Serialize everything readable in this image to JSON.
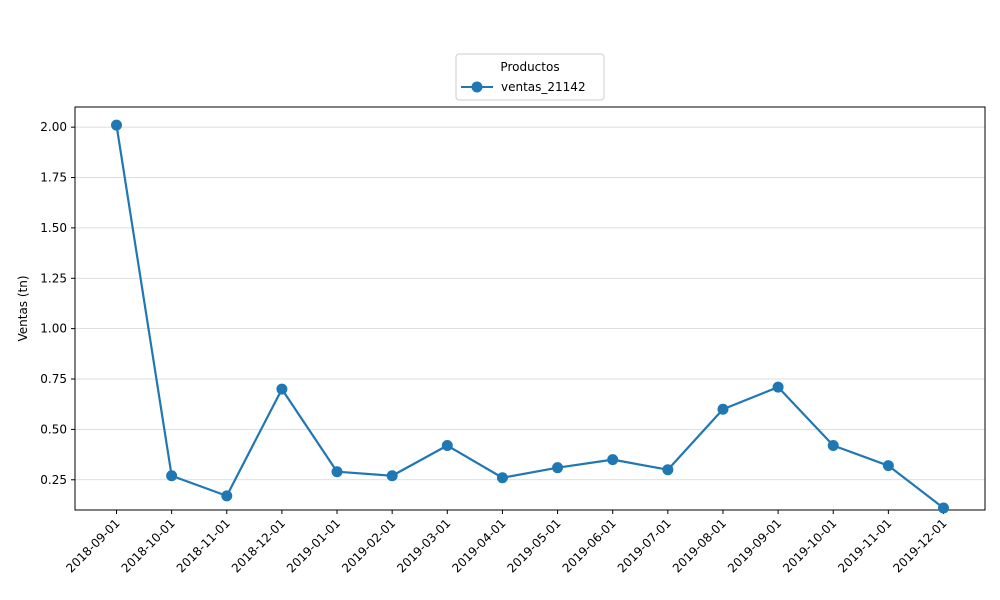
{
  "chart_data": {
    "type": "line",
    "ylabel": "Ventas (tn)",
    "xlabel": "",
    "legend_title": "Productos",
    "legend_position": "top-center",
    "grid": "y",
    "ylim": [
      0.1,
      2.1
    ],
    "yticks": [
      "0.25",
      "0.50",
      "0.75",
      "1.00",
      "1.25",
      "1.50",
      "1.75",
      "2.00"
    ],
    "x": [
      "2018-09-01",
      "2018-10-01",
      "2018-11-01",
      "2018-12-01",
      "2019-01-01",
      "2019-02-01",
      "2019-03-01",
      "2019-04-01",
      "2019-05-01",
      "2019-06-01",
      "2019-07-01",
      "2019-08-01",
      "2019-09-01",
      "2019-10-01",
      "2019-11-01",
      "2019-12-01"
    ],
    "series": [
      {
        "name": "ventas_21142",
        "color": "#1f77b4",
        "values": [
          2.01,
          0.27,
          0.17,
          0.7,
          0.29,
          0.27,
          0.42,
          0.26,
          0.31,
          0.35,
          0.3,
          0.6,
          0.71,
          0.42,
          0.32,
          0.11
        ]
      }
    ]
  }
}
